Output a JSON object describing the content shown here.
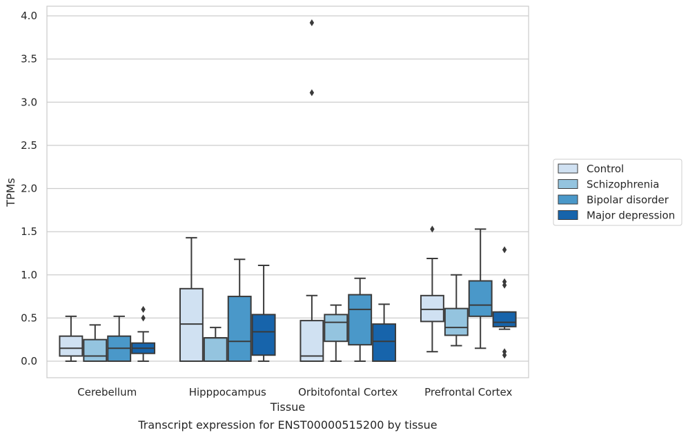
{
  "chart_data": {
    "type": "boxplot",
    "title": "Transcript expression for ENST00000515200 by tissue",
    "xlabel": "Tissue",
    "ylabel": "TPMs",
    "ylim": [
      -0.19,
      4.12
    ],
    "yticks": [
      "0.0",
      "0.5",
      "1.0",
      "1.5",
      "2.0",
      "2.5",
      "3.0",
      "3.5",
      "4.0"
    ],
    "grid": true,
    "legend_position": "right",
    "categories": [
      "Cerebellum",
      "Hipppocampus",
      "Orbitofontal Cortex",
      "Prefrontal Cortex"
    ],
    "series": [
      {
        "name": "Control",
        "color": "#d0e1f2",
        "boxes": [
          {
            "whislo": 0.0,
            "q1": 0.06,
            "med": 0.15,
            "q3": 0.29,
            "whishi": 0.52,
            "fliers": []
          },
          {
            "whislo": 0.0,
            "q1": 0.0,
            "med": 0.43,
            "q3": 0.84,
            "whishi": 1.43,
            "fliers": []
          },
          {
            "whislo": 0.0,
            "q1": 0.0,
            "med": 0.06,
            "q3": 0.47,
            "whishi": 0.76,
            "fliers": [
              3.92,
              3.11
            ]
          },
          {
            "whislo": 0.11,
            "q1": 0.46,
            "med": 0.6,
            "q3": 0.76,
            "whishi": 1.19,
            "fliers": [
              1.53
            ]
          }
        ]
      },
      {
        "name": "Schizophrenia",
        "color": "#94c4df",
        "boxes": [
          {
            "whislo": 0.0,
            "q1": 0.0,
            "med": 0.06,
            "q3": 0.25,
            "whishi": 0.42,
            "fliers": []
          },
          {
            "whislo": 0.0,
            "q1": 0.0,
            "med": 0.27,
            "q3": 0.27,
            "whishi": 0.39,
            "fliers": []
          },
          {
            "whislo": 0.0,
            "q1": 0.23,
            "med": 0.45,
            "q3": 0.54,
            "whishi": 0.65,
            "fliers": []
          },
          {
            "whislo": 0.18,
            "q1": 0.3,
            "med": 0.39,
            "q3": 0.61,
            "whishi": 1.0,
            "fliers": []
          }
        ]
      },
      {
        "name": "Bipolar disorder",
        "color": "#4a98c9",
        "boxes": [
          {
            "whislo": 0.0,
            "q1": 0.0,
            "med": 0.15,
            "q3": 0.29,
            "whishi": 0.52,
            "fliers": []
          },
          {
            "whislo": 0.0,
            "q1": 0.0,
            "med": 0.23,
            "q3": 0.75,
            "whishi": 1.18,
            "fliers": []
          },
          {
            "whislo": 0.0,
            "q1": 0.19,
            "med": 0.6,
            "q3": 0.77,
            "whishi": 0.96,
            "fliers": []
          },
          {
            "whislo": 0.15,
            "q1": 0.52,
            "med": 0.65,
            "q3": 0.93,
            "whishi": 1.53,
            "fliers": []
          }
        ]
      },
      {
        "name": "Major depression",
        "color": "#1764ab",
        "boxes": [
          {
            "whislo": 0.0,
            "q1": 0.09,
            "med": 0.15,
            "q3": 0.21,
            "whishi": 0.34,
            "fliers": [
              0.6,
              0.5
            ]
          },
          {
            "whislo": 0.0,
            "q1": 0.07,
            "med": 0.34,
            "q3": 0.54,
            "whishi": 1.11,
            "fliers": []
          },
          {
            "whislo": 0.0,
            "q1": 0.0,
            "med": 0.23,
            "q3": 0.43,
            "whishi": 0.66,
            "fliers": []
          },
          {
            "whislo": 0.37,
            "q1": 0.4,
            "med": 0.45,
            "q3": 0.57,
            "whishi": 0.57,
            "fliers": [
              1.29,
              0.92,
              0.88,
              0.11,
              0.07
            ]
          }
        ]
      }
    ]
  }
}
